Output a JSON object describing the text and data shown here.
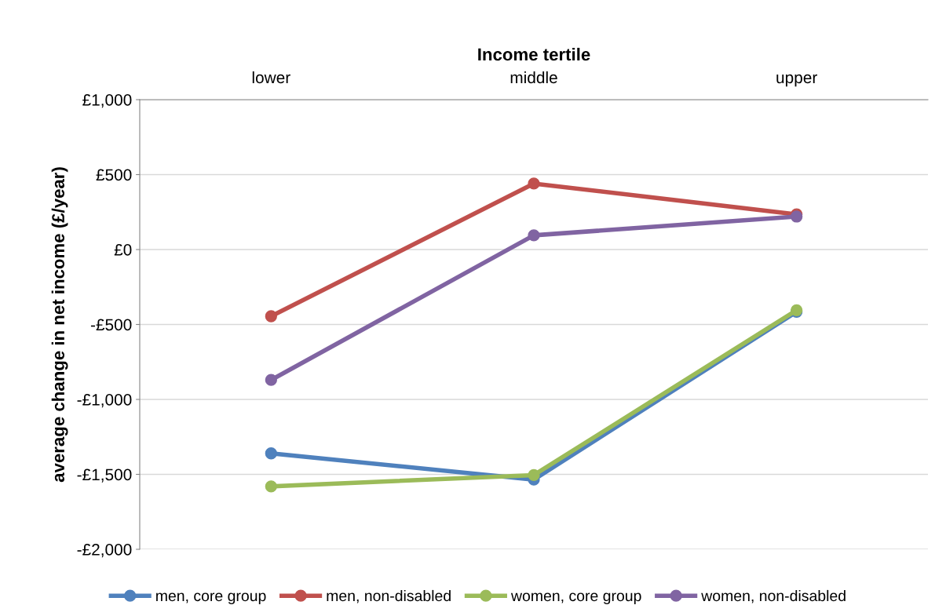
{
  "chart_data": {
    "type": "line",
    "xlabel": "Income tertile",
    "ylabel": "average change in net income (£/year)",
    "categories": [
      "lower",
      "middle",
      "upper"
    ],
    "series": [
      {
        "name": "men, core group",
        "color": "#4f81bd",
        "values": [
          -1360,
          -1535,
          -415
        ]
      },
      {
        "name": "men, non-disabled",
        "color": "#c0504d",
        "values": [
          -445,
          440,
          235
        ]
      },
      {
        "name": "women, core group",
        "color": "#9bbb59",
        "values": [
          -1580,
          -1505,
          -405
        ]
      },
      {
        "name": "women, non-disabled",
        "color": "#8064a2",
        "values": [
          -870,
          95,
          220
        ]
      }
    ],
    "ylim": [
      -2000,
      1000
    ],
    "yticks": [
      {
        "value": 1000,
        "label": "£1,000"
      },
      {
        "value": 500,
        "label": "£500"
      },
      {
        "value": 0,
        "label": "£0"
      },
      {
        "value": -500,
        "label": "-£500"
      },
      {
        "value": -1000,
        "label": "-£1,000"
      },
      {
        "value": -1500,
        "label": "-£1,500"
      },
      {
        "value": -2000,
        "label": "-£2,000"
      }
    ],
    "grid": "y",
    "legend": "bottom",
    "marker": "circle",
    "line_style": "solid"
  }
}
